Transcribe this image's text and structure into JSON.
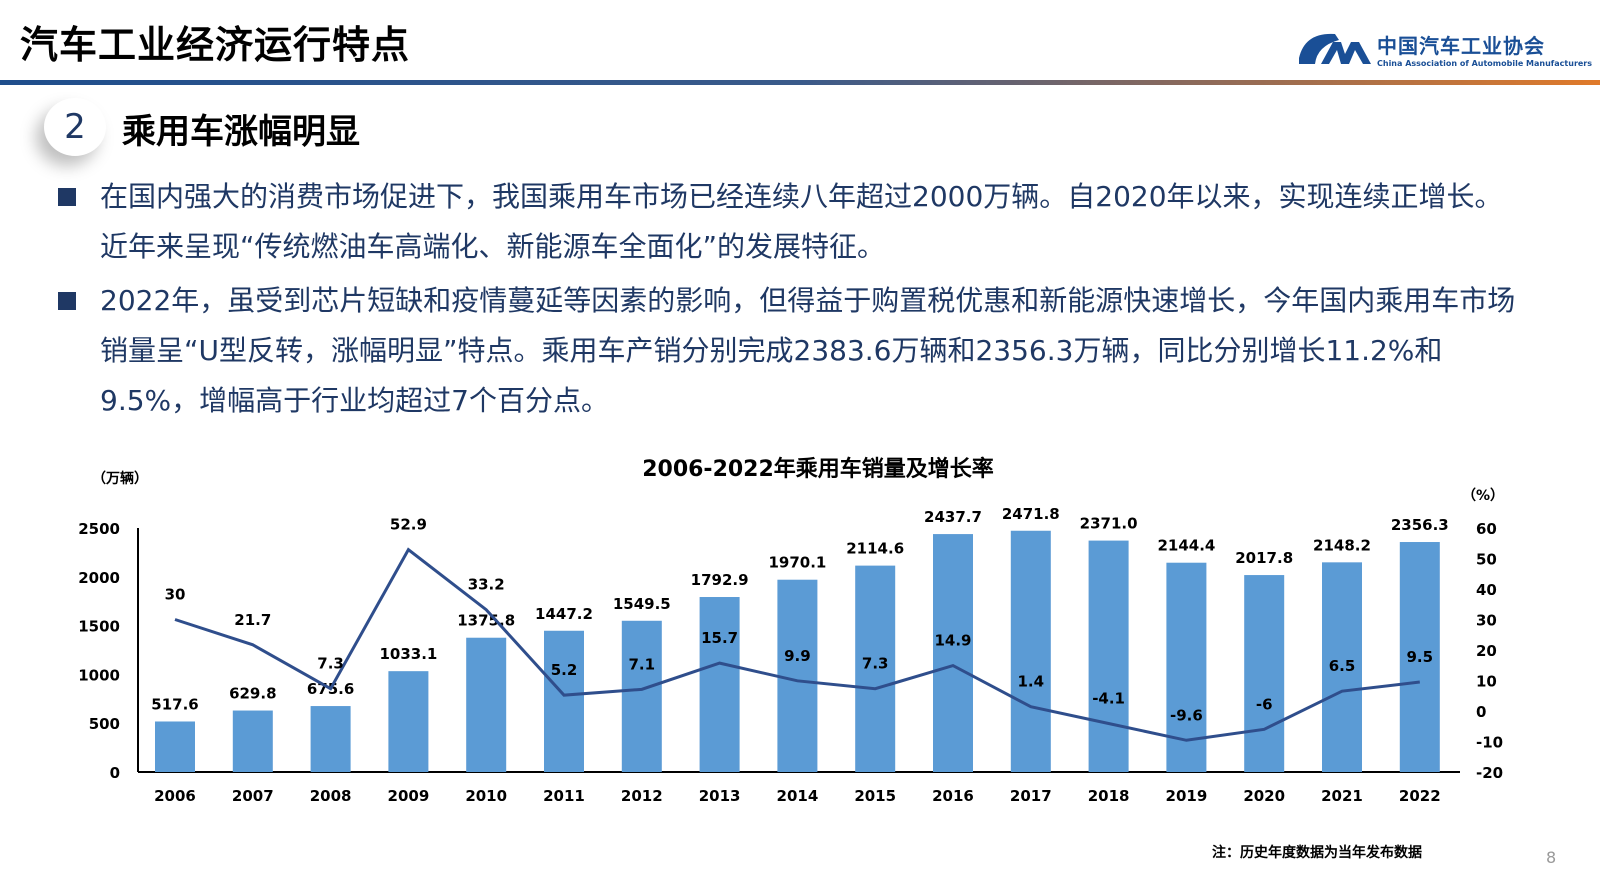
{
  "header": {
    "title": "汽车工业经济运行特点",
    "logo_cn": "中国汽车工业协会",
    "logo_en": "China Association of Automobile Manufacturers"
  },
  "section": {
    "number": "2",
    "title": "乘用车涨幅明显"
  },
  "bullets": [
    "在国内强大的消费市场促进下，我国乘用车市场已经连续八年超过2000万辆。自2020年以来，实现连续正增长。近年来呈现“传统燃油车高端化、新能源车全面化”的发展特征。",
    "2022年，虽受到芯片短缺和疫情蔓延等因素的影响，但得益于购置税优惠和新能源快速增长，今年国内乘用车市场销量呈“U型反转，涨幅明显”特点。乘用车产销分别完成2383.6万辆和2356.3万辆，同比分别增长11.2%和9.5%，增幅高于行业均超过7个百分点。"
  ],
  "chart_data": {
    "type": "bar+line",
    "title": "2006-2022年乘用车销量及增长率",
    "ylabel": "（万辆）",
    "y2label": "（%）",
    "categories": [
      "2006",
      "2007",
      "2008",
      "2009",
      "2010",
      "2011",
      "2012",
      "2013",
      "2014",
      "2015",
      "2016",
      "2017",
      "2018",
      "2019",
      "2020",
      "2021",
      "2022"
    ],
    "series": [
      {
        "type": "bar",
        "color": "#5b9bd5",
        "values": [
          517.6,
          629.8,
          675.6,
          1033.1,
          1375.8,
          1447.2,
          1549.5,
          1792.9,
          1970.1,
          2114.6,
          2437.7,
          2471.8,
          2371.0,
          2144.4,
          2017.8,
          2148.2,
          2356.3
        ]
      },
      {
        "type": "line",
        "color": "#2f4e8c",
        "axis": "right",
        "values": [
          30,
          21.7,
          7.3,
          52.9,
          33.2,
          5.2,
          7.1,
          15.7,
          9.9,
          7.3,
          14.9,
          1.4,
          -4.1,
          -9.6,
          -6,
          6.5,
          9.5
        ]
      }
    ],
    "ylim": [
      0,
      2500
    ],
    "yticks": [
      0,
      500,
      1000,
      1500,
      2000,
      2500
    ],
    "y2lim": [
      -20,
      60
    ],
    "y2ticks": [
      -20,
      -10,
      0,
      10,
      20,
      30,
      40,
      50,
      60
    ],
    "grid": false
  },
  "note": "注：历史年度数据为当年发布数据",
  "page_number": "8"
}
